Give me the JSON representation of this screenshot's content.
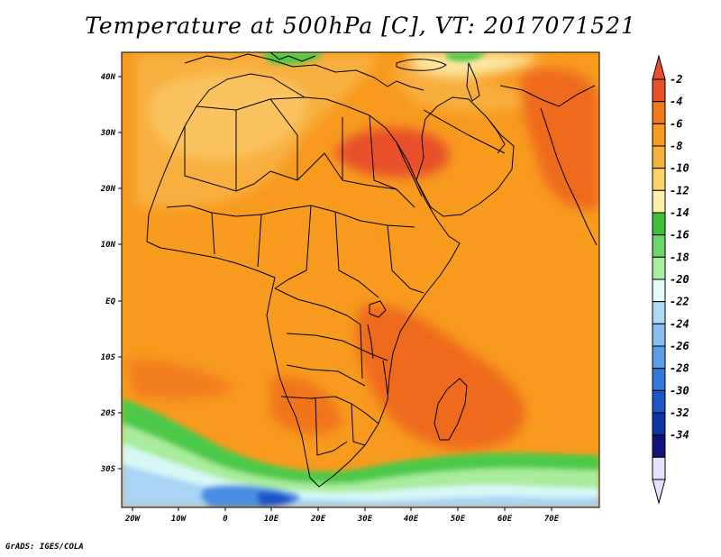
{
  "title": "Temperature at 500hPa [C], VT: 2017071521",
  "credit": "GrADS: IGES/COLA",
  "map": {
    "lon_labels": [
      "20W",
      "10W",
      "0",
      "10E",
      "20E",
      "30E",
      "40E",
      "50E",
      "60E",
      "70E"
    ],
    "lat_labels": [
      "40N",
      "30N",
      "20N",
      "10N",
      "EQ",
      "10S",
      "20S",
      "30S"
    ]
  },
  "colorbar": {
    "levels": [
      "-2",
      "-4",
      "-6",
      "-8",
      "-10",
      "-12",
      "-14",
      "-16",
      "-18",
      "-20",
      "-22",
      "-24",
      "-26",
      "-28",
      "-30",
      "-32",
      "-34"
    ],
    "colors": [
      "#e8502a",
      "#f2781c",
      "#f79a1e",
      "#f7b23c",
      "#fbd268",
      "#fdeea8",
      "#3fbf3a",
      "#6cd66a",
      "#a9eea0",
      "#e2fbf6",
      "#b0d9f5",
      "#88bdf0",
      "#5b9ee6",
      "#3478dc",
      "#1f55c8",
      "#0f34a8",
      "#10137a",
      "#e6e0fa"
    ],
    "top_arrow_color": "#e8502a",
    "bottom_arrow_color": "#e6e0fa"
  },
  "colors": {
    "base_orange": "#f79a1e",
    "red_orange": "#ef6a1c",
    "light_orange": "#f8b74a",
    "pale_yellow": "#fde7a0",
    "green": "#4ec94a",
    "light_green": "#a8ec9c",
    "cyan": "#d8f8f6",
    "light_blue": "#a9d4f4",
    "blue": "#4a8ee2",
    "dark_blue": "#1f55c8"
  }
}
